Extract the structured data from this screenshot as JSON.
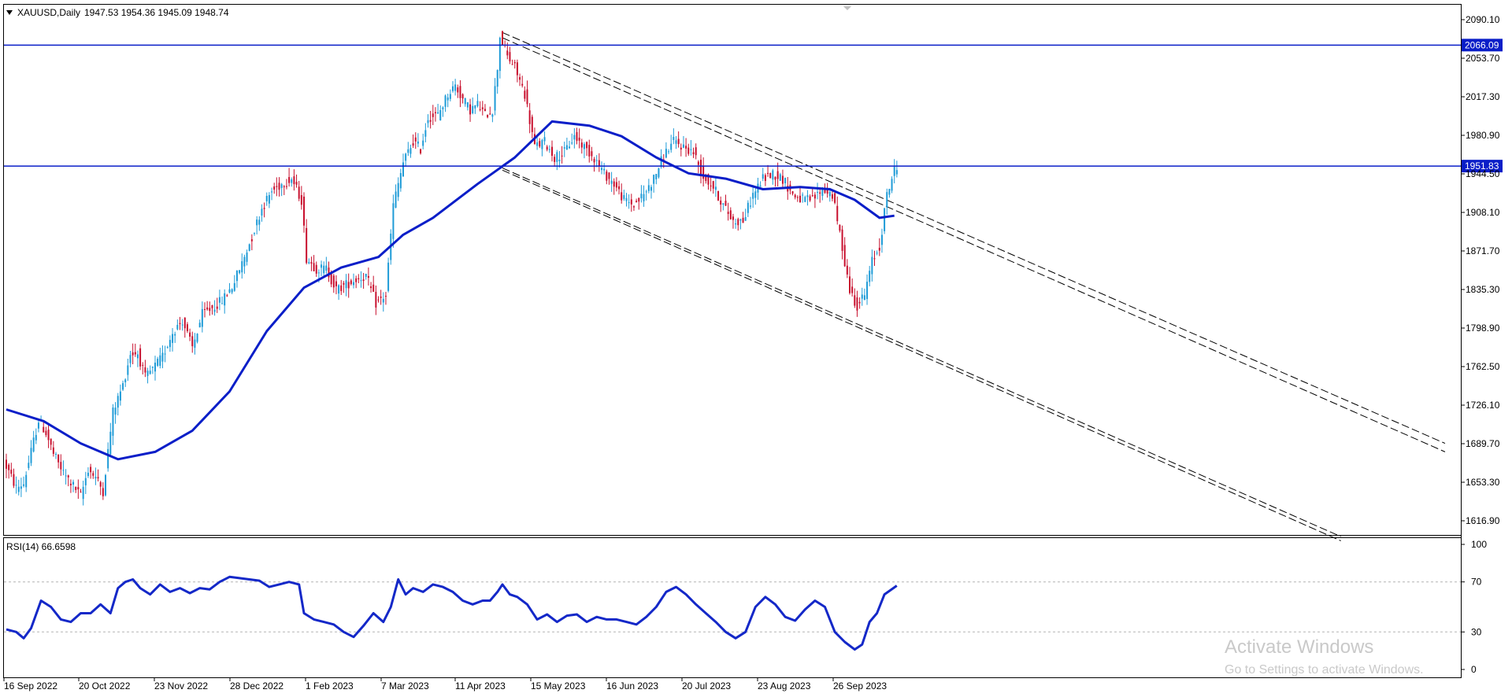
{
  "header": {
    "symbol_timeframe": "XAUUSD,Daily",
    "ohlc": "1947.53 1954.36 1945.09 1948.74"
  },
  "rsi_label": "RSI(14) 66.6598",
  "watermark": {
    "title": "Activate Windows",
    "subtitle": "Go to Settings to activate Windows."
  },
  "colors": {
    "bull": "#1e9bd7",
    "bear": "#c8102e",
    "ma": "#0a1ec8",
    "hline": "#0a1ec8",
    "rsi": "#1428c8",
    "grid_dash": "#b4b4b4",
    "axis": "#000000"
  },
  "chart_data": [
    {
      "type": "candlestick",
      "title": "XAUUSD,Daily",
      "ylim": [
        1600.0,
        2104.6
      ],
      "y_ticks": [
        "2090.10",
        "2053.70",
        "2017.30",
        "1980.90",
        "1944.50",
        "1908.10",
        "1871.70",
        "1835.30",
        "1798.90",
        "1762.50",
        "1726.10",
        "1689.70",
        "1653.30",
        "1616.90"
      ],
      "y_tick_values": [
        2090.1,
        2053.7,
        2017.3,
        1980.9,
        1944.5,
        1908.1,
        1871.7,
        1835.3,
        1798.9,
        1762.5,
        1726.1,
        1689.7,
        1653.3,
        1616.9
      ],
      "x_ticks": [
        "16 Sep 2022",
        "20 Oct 2022",
        "23 Nov 2022",
        "28 Dec 2022",
        "1 Feb 2023",
        "7 Mar 2023",
        "11 Apr 2023",
        "15 May 2023",
        "16 Jun 2023",
        "20 Jul 2023",
        "23 Aug 2023",
        "26 Sep 2023"
      ],
      "price_path": [
        [
          0,
          1673
        ],
        [
          5,
          1648
        ],
        [
          8,
          1652
        ],
        [
          11,
          1682
        ],
        [
          14,
          1712
        ],
        [
          17,
          1700
        ],
        [
          20,
          1680
        ],
        [
          24,
          1662
        ],
        [
          28,
          1650
        ],
        [
          31,
          1640
        ],
        [
          34,
          1666
        ],
        [
          37,
          1658
        ],
        [
          40,
          1645
        ],
        [
          44,
          1720
        ],
        [
          48,
          1745
        ],
        [
          51,
          1775
        ],
        [
          54,
          1775
        ],
        [
          57,
          1752
        ],
        [
          60,
          1760
        ],
        [
          64,
          1772
        ],
        [
          68,
          1795
        ],
        [
          72,
          1806
        ],
        [
          76,
          1780
        ],
        [
          80,
          1812
        ],
        [
          84,
          1818
        ],
        [
          88,
          1825
        ],
        [
          92,
          1838
        ],
        [
          96,
          1860
        ],
        [
          100,
          1885
        ],
        [
          104,
          1912
        ],
        [
          108,
          1928
        ],
        [
          112,
          1935
        ],
        [
          116,
          1940
        ],
        [
          120,
          1920
        ],
        [
          122,
          1865
        ],
        [
          126,
          1855
        ],
        [
          130,
          1855
        ],
        [
          134,
          1835
        ],
        [
          138,
          1840
        ],
        [
          142,
          1845
        ],
        [
          146,
          1848
        ],
        [
          150,
          1822
        ],
        [
          154,
          1830
        ],
        [
          157,
          1915
        ],
        [
          161,
          1955
        ],
        [
          165,
          1975
        ],
        [
          168,
          1968
        ],
        [
          171,
          1998
        ],
        [
          175,
          2000
        ],
        [
          179,
          2020
        ],
        [
          182,
          2028
        ],
        [
          185,
          2015
        ],
        [
          188,
          2005
        ],
        [
          191,
          2010
        ],
        [
          194,
          2000
        ],
        [
          197,
          2005
        ],
        [
          199,
          2045
        ],
        [
          200,
          2075
        ],
        [
          203,
          2055
        ],
        [
          206,
          2045
        ],
        [
          210,
          2020
        ],
        [
          214,
          1970
        ],
        [
          218,
          1975
        ],
        [
          222,
          1960
        ],
        [
          226,
          1965
        ],
        [
          230,
          1980
        ],
        [
          234,
          1970
        ],
        [
          238,
          1960
        ],
        [
          242,
          1945
        ],
        [
          246,
          1935
        ],
        [
          250,
          1920
        ],
        [
          254,
          1915
        ],
        [
          258,
          1925
        ],
        [
          262,
          1940
        ],
        [
          266,
          1962
        ],
        [
          270,
          1975
        ],
        [
          274,
          1970
        ],
        [
          278,
          1965
        ],
        [
          282,
          1942
        ],
        [
          286,
          1932
        ],
        [
          290,
          1915
        ],
        [
          294,
          1900
        ],
        [
          298,
          1900
        ],
        [
          302,
          1925
        ],
        [
          306,
          1940
        ],
        [
          310,
          1945
        ],
        [
          314,
          1940
        ],
        [
          318,
          1925
        ],
        [
          322,
          1920
        ],
        [
          326,
          1920
        ],
        [
          330,
          1930
        ],
        [
          334,
          1925
        ],
        [
          338,
          1875
        ],
        [
          341,
          1835
        ],
        [
          344,
          1820
        ],
        [
          347,
          1830
        ],
        [
          350,
          1862
        ],
        [
          353,
          1875
        ],
        [
          356,
          1925
        ],
        [
          359,
          1948
        ]
      ],
      "x_range": [
        0,
        360
      ],
      "ma_values": [
        [
          0,
          1722
        ],
        [
          15,
          1711
        ],
        [
          30,
          1690
        ],
        [
          45,
          1675
        ],
        [
          60,
          1682
        ],
        [
          75,
          1702
        ],
        [
          90,
          1739
        ],
        [
          105,
          1796
        ],
        [
          120,
          1837
        ],
        [
          135,
          1856
        ],
        [
          150,
          1866
        ],
        [
          160,
          1887
        ],
        [
          172,
          1903
        ],
        [
          190,
          1935
        ],
        [
          205,
          1960
        ],
        [
          220,
          1994
        ],
        [
          235,
          1990
        ],
        [
          248,
          1980
        ],
        [
          262,
          1960
        ],
        [
          275,
          1945
        ],
        [
          290,
          1940
        ],
        [
          305,
          1930
        ],
        [
          320,
          1932
        ],
        [
          332,
          1930
        ],
        [
          342,
          1920
        ],
        [
          352,
          1903
        ],
        [
          358,
          1905
        ]
      ],
      "horizontal_levels": [
        {
          "value": 2066.09,
          "label": "2066.09"
        },
        {
          "value": 1951.83,
          "label": "1951.83"
        }
      ],
      "channel_lines": [
        {
          "x1": 200,
          "y1": 2078,
          "x2": 580,
          "y2": 1690
        },
        {
          "x1": 200,
          "y1": 2073,
          "x2": 580,
          "y2": 1682
        },
        {
          "x1": 200,
          "y1": 1950,
          "x2": 538,
          "y2": 1602
        },
        {
          "x1": 200,
          "y1": 1948,
          "x2": 538,
          "y2": 1598
        }
      ]
    },
    {
      "type": "line",
      "title": "RSI(14) 66.6598",
      "ylim": [
        0,
        100
      ],
      "y_ticks": [
        "100",
        "70",
        "30",
        "0"
      ],
      "y_tick_values": [
        100,
        70,
        30,
        0
      ],
      "levels": [
        70,
        30
      ],
      "values_path": [
        [
          0,
          32
        ],
        [
          4,
          30
        ],
        [
          7,
          25
        ],
        [
          10,
          33
        ],
        [
          14,
          55
        ],
        [
          18,
          50
        ],
        [
          22,
          40
        ],
        [
          26,
          38
        ],
        [
          30,
          45
        ],
        [
          34,
          45
        ],
        [
          38,
          52
        ],
        [
          42,
          45
        ],
        [
          45,
          65
        ],
        [
          48,
          70
        ],
        [
          51,
          72
        ],
        [
          54,
          65
        ],
        [
          58,
          60
        ],
        [
          62,
          68
        ],
        [
          66,
          62
        ],
        [
          70,
          65
        ],
        [
          74,
          61
        ],
        [
          78,
          65
        ],
        [
          82,
          64
        ],
        [
          86,
          70
        ],
        [
          90,
          74
        ],
        [
          94,
          73
        ],
        [
          98,
          72
        ],
        [
          102,
          71
        ],
        [
          106,
          66
        ],
        [
          110,
          68
        ],
        [
          114,
          70
        ],
        [
          118,
          68
        ],
        [
          120,
          45
        ],
        [
          124,
          40
        ],
        [
          128,
          38
        ],
        [
          132,
          36
        ],
        [
          136,
          30
        ],
        [
          140,
          26
        ],
        [
          144,
          35
        ],
        [
          148,
          45
        ],
        [
          152,
          38
        ],
        [
          155,
          50
        ],
        [
          158,
          72
        ],
        [
          161,
          60
        ],
        [
          164,
          65
        ],
        [
          168,
          62
        ],
        [
          172,
          68
        ],
        [
          176,
          66
        ],
        [
          180,
          62
        ],
        [
          184,
          55
        ],
        [
          188,
          52
        ],
        [
          192,
          55
        ],
        [
          195,
          55
        ],
        [
          198,
          62
        ],
        [
          200,
          68
        ],
        [
          203,
          60
        ],
        [
          206,
          58
        ],
        [
          210,
          52
        ],
        [
          214,
          40
        ],
        [
          218,
          44
        ],
        [
          222,
          38
        ],
        [
          226,
          43
        ],
        [
          230,
          44
        ],
        [
          234,
          38
        ],
        [
          238,
          42
        ],
        [
          242,
          40
        ],
        [
          246,
          40
        ],
        [
          250,
          38
        ],
        [
          254,
          36
        ],
        [
          258,
          42
        ],
        [
          262,
          50
        ],
        [
          266,
          62
        ],
        [
          270,
          66
        ],
        [
          274,
          60
        ],
        [
          278,
          52
        ],
        [
          282,
          45
        ],
        [
          286,
          38
        ],
        [
          290,
          30
        ],
        [
          294,
          25
        ],
        [
          298,
          30
        ],
        [
          302,
          50
        ],
        [
          306,
          58
        ],
        [
          310,
          52
        ],
        [
          314,
          42
        ],
        [
          318,
          39
        ],
        [
          322,
          48
        ],
        [
          326,
          55
        ],
        [
          330,
          50
        ],
        [
          334,
          30
        ],
        [
          338,
          22
        ],
        [
          342,
          16
        ],
        [
          345,
          20
        ],
        [
          348,
          38
        ],
        [
          351,
          45
        ],
        [
          354,
          60
        ],
        [
          359,
          67
        ]
      ]
    }
  ]
}
